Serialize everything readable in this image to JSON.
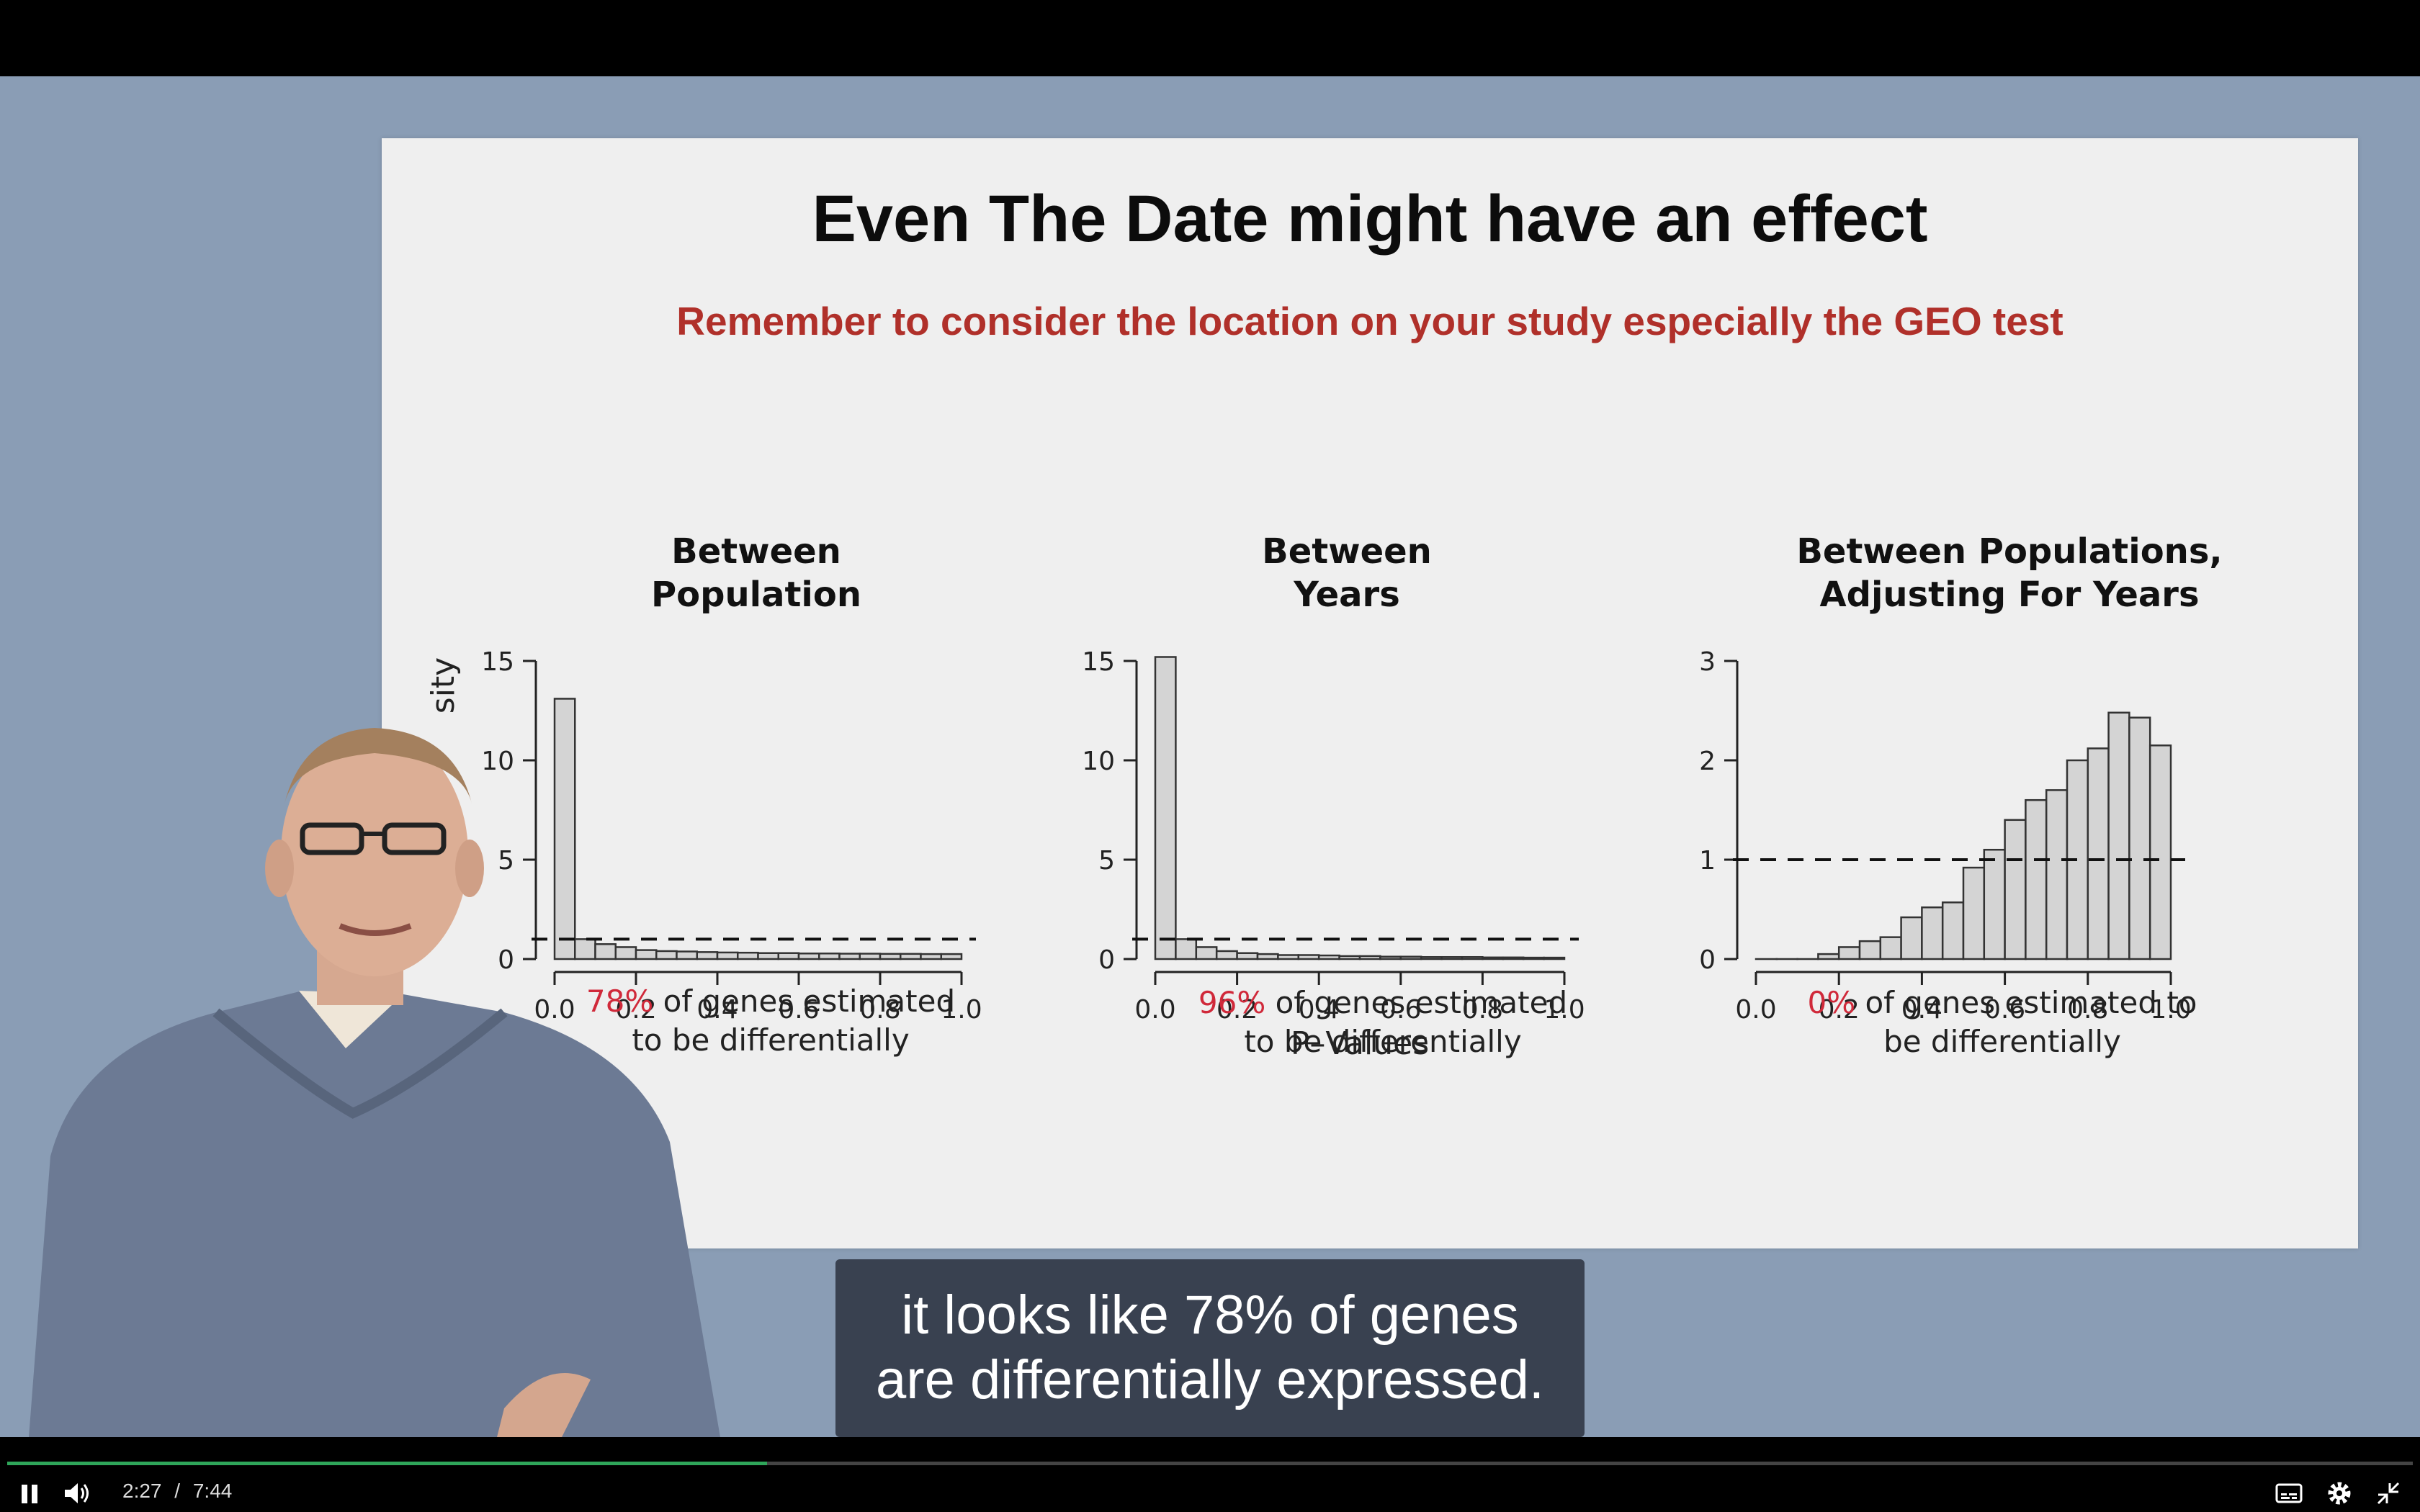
{
  "slide": {
    "title": "Even The Date might have an effect",
    "subtitle": "Remember to consider the location on your study especially the GEO test"
  },
  "chart_data": [
    {
      "type": "bar",
      "title_lines": [
        "Between",
        "Population"
      ],
      "ylabel_partial": "sity",
      "xlabel": "",
      "x_ticks": [
        "0.0",
        "0.2",
        "0.4",
        "0.6",
        "0.8",
        "1.0"
      ],
      "y_ticks": [
        "0",
        "5",
        "10",
        "15"
      ],
      "ylim": [
        0,
        15
      ],
      "xlim": [
        0,
        1
      ],
      "bin_width": 0.05,
      "values": [
        13.1,
        1.0,
        0.75,
        0.6,
        0.45,
        0.4,
        0.38,
        0.35,
        0.33,
        0.32,
        0.3,
        0.3,
        0.28,
        0.28,
        0.27,
        0.27,
        0.26,
        0.26,
        0.25,
        0.25
      ],
      "reference_line": 1,
      "caption_pct": "78%",
      "caption_rest1": " of genes estimated",
      "caption_rest2": "to be differentially"
    },
    {
      "type": "bar",
      "title_lines": [
        "Between",
        "Years"
      ],
      "xlabel": "P–Values",
      "x_ticks": [
        "0.0",
        "0.2",
        "0.4",
        "0.6",
        "0.8",
        "1.0"
      ],
      "y_ticks": [
        "0",
        "5",
        "10",
        "15"
      ],
      "ylim": [
        0,
        15
      ],
      "xlim": [
        0,
        1
      ],
      "bin_width": 0.05,
      "values": [
        15.2,
        1.0,
        0.6,
        0.4,
        0.3,
        0.25,
        0.2,
        0.2,
        0.18,
        0.15,
        0.15,
        0.12,
        0.12,
        0.1,
        0.1,
        0.1,
        0.08,
        0.08,
        0.07,
        0.07
      ],
      "reference_line": 1,
      "caption_pct": "96%",
      "caption_rest1": " of genes estimated",
      "caption_rest2": "to be differentially"
    },
    {
      "type": "bar",
      "title_lines": [
        "Between Populations,",
        "Adjusting For Years"
      ],
      "xlabel": "",
      "x_ticks": [
        "0.0",
        "0.2",
        "0.4",
        "0.6",
        "0.8",
        "1.0"
      ],
      "y_ticks": [
        "0",
        "1",
        "2",
        "3"
      ],
      "ylim": [
        0,
        3
      ],
      "xlim": [
        0,
        1
      ],
      "bin_width": 0.05,
      "values": [
        0.0,
        0.0,
        0.0,
        0.05,
        0.12,
        0.18,
        0.22,
        0.42,
        0.52,
        0.57,
        0.92,
        1.1,
        1.4,
        1.6,
        1.7,
        2.0,
        2.12,
        2.48,
        2.43,
        2.15
      ],
      "reference_line": 1,
      "caption_pct": "0%",
      "caption_rest1": " of genes estimated to",
      "caption_rest2": "be differentially"
    }
  ],
  "captions": {
    "line1": "it looks like 78% of genes",
    "line2": "are differentially expressed."
  },
  "player": {
    "current_time": "2:27",
    "separator": "/",
    "duration": "7:44",
    "progress": 0.316,
    "accent_color": "#2fa65a",
    "icons": [
      "pause-icon",
      "volume-icon",
      "closed-captions-icon",
      "settings-gear-icon",
      "exit-fullscreen-icon"
    ]
  }
}
